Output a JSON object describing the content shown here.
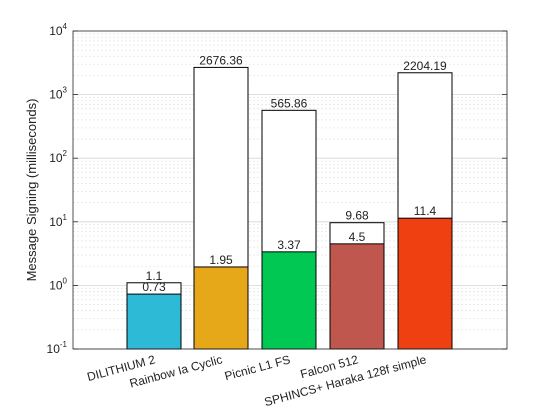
{
  "chart_data": {
    "type": "bar",
    "title": "",
    "xlabel": "",
    "ylabel": "Message Signing (milliseconds)",
    "yscale": "log",
    "ylim": [
      0.1,
      10000
    ],
    "y_ticks": [
      0.1,
      1,
      10,
      100,
      1000,
      10000
    ],
    "y_tick_labels": [
      {
        "base": "10",
        "exp": "-1"
      },
      {
        "base": "10",
        "exp": "0"
      },
      {
        "base": "10",
        "exp": "1"
      },
      {
        "base": "10",
        "exp": "2"
      },
      {
        "base": "10",
        "exp": "3"
      },
      {
        "base": "10",
        "exp": "4"
      }
    ],
    "grid": "minor-y",
    "categories": [
      "DILITHIUM 2",
      "Rainbow Ia Cyclic",
      "Picnic L1 FS",
      "Falcon 512",
      "SPHINCS+ Haraka 128f simple"
    ],
    "colors": [
      "#2dbad6",
      "#e6a718",
      "#00c853",
      "#c0574f",
      "#ef4012"
    ],
    "series": [
      {
        "values": [
          0.73,
          1.95,
          3.37,
          4.5,
          11.4
        ],
        "labels": [
          "0.73",
          "1.95",
          "3.37",
          "4.5",
          "11.4"
        ],
        "style": "filled"
      },
      {
        "values": [
          1.1,
          2676.36,
          565.86,
          9.68,
          2204.19
        ],
        "labels": [
          "1.1",
          "2676.36",
          "565.86",
          "9.68",
          "2204.19"
        ],
        "style": "outline"
      }
    ]
  }
}
